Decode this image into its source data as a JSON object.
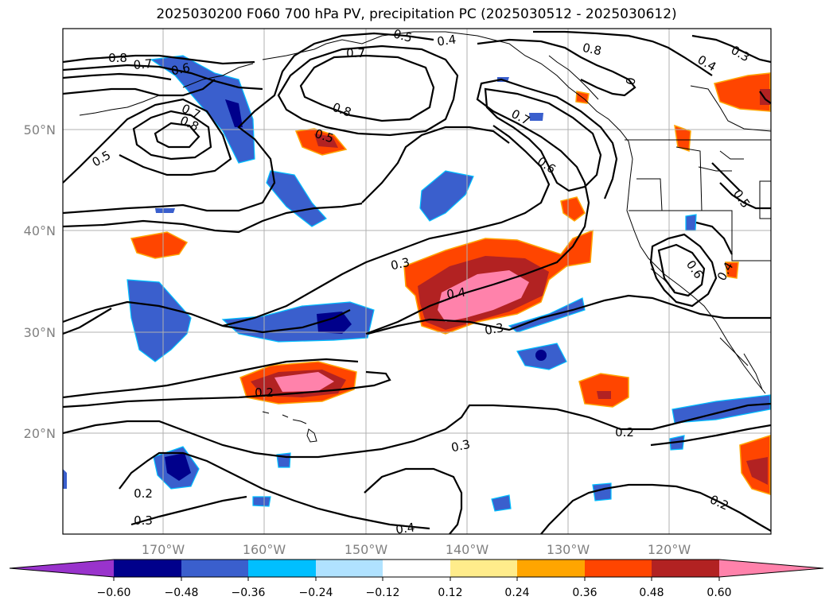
{
  "title": "2025030200 F060 700 hPa PV, precipitation PC (2025030512 - 2025030612)",
  "lat_labels": [
    "50°N",
    "40°N",
    "30°N",
    "20°N"
  ],
  "lon_labels": [
    "170°W",
    "160°W",
    "150°W",
    "140°W",
    "130°W",
    "120°W"
  ],
  "contour_labels": [
    "0.8",
    "0.7",
    "0.6",
    "0.7",
    "0.8",
    "0.5",
    "0.5",
    "0.4",
    "0.7",
    "0.8",
    "0.5",
    "0.7",
    "0.6",
    "0.8",
    "0.4",
    "0.3",
    "0",
    "0.5",
    "0.3",
    "0.4",
    "0.3",
    "0.6",
    "0.4",
    "0.2",
    "0.3",
    "0.2",
    "0.2",
    "0.3",
    "0.4",
    "0.2"
  ],
  "colorbar": {
    "ticks": [
      "−0.60",
      "−0.48",
      "−0.36",
      "−0.24",
      "−0.12",
      "0.12",
      "0.24",
      "0.36",
      "0.48",
      "0.60"
    ],
    "colors": [
      "#9933cc",
      "#00008b",
      "#3a5fcd",
      "#00bfff",
      "#b0e2ff",
      "#ffffff",
      "#ffec8b",
      "#ffa500",
      "#ff4500",
      "#b22222",
      "#ff82ab"
    ]
  }
}
